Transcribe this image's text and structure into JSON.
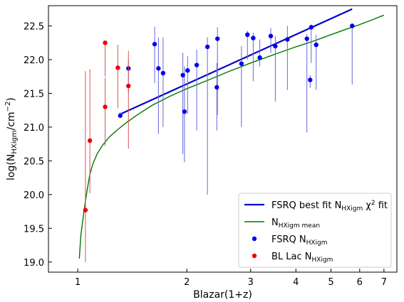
{
  "chart_data": {
    "type": "scatter",
    "title": "",
    "xlabel": "Blazar(1+z)",
    "ylabel_main": "log(N",
    "ylabel_sub": "HXigm",
    "ylabel_unit": "/cm",
    "ylabel_sup": "−2",
    "ylabel_close": ")",
    "xscale": "log",
    "xlim": [
      0.83,
      7.6
    ],
    "ylim": [
      18.85,
      22.8
    ],
    "xticks": [
      {
        "v": 1,
        "label": "1"
      },
      {
        "v": 2,
        "label": "2"
      },
      {
        "v": 3,
        "label": "3"
      },
      {
        "v": 4,
        "label": "4"
      },
      {
        "v": 5,
        "label": "5"
      },
      {
        "v": 6,
        "label": "6"
      },
      {
        "v": 7,
        "label": "7"
      }
    ],
    "yticks": [
      {
        "v": 19.0,
        "label": "19.0"
      },
      {
        "v": 19.5,
        "label": "19.5"
      },
      {
        "v": 20.0,
        "label": "20.0"
      },
      {
        "v": 20.5,
        "label": "20.5"
      },
      {
        "v": 21.0,
        "label": "21.0"
      },
      {
        "v": 21.5,
        "label": "21.5"
      },
      {
        "v": 22.0,
        "label": "22.0"
      },
      {
        "v": 22.5,
        "label": "22.5"
      }
    ],
    "legend": {
      "placement": "lower-right",
      "entries": [
        {
          "main": "FSRQ best fit N",
          "sub": "HXigm",
          "tail": " χ",
          "sup": "2",
          "tail2": " fit",
          "kind": "line",
          "color": "#0000cc"
        },
        {
          "main": "N",
          "sub": "HXigm mean",
          "tail": "",
          "sup": "",
          "tail2": "",
          "kind": "line",
          "color": "#007700"
        },
        {
          "main": "FSRQ N",
          "sub": "HXigm",
          "tail": "",
          "sup": "",
          "tail2": "",
          "kind": "dot",
          "color": "#0000ee"
        },
        {
          "main": "BL Lac N",
          "sub": "HXigm",
          "tail": "",
          "sup": "",
          "tail2": "",
          "kind": "dot",
          "color": "#ee0000"
        }
      ]
    },
    "series": [
      {
        "kind": "fit_line",
        "color": "#0000cc",
        "x": [
          1.32,
          5.72
        ],
        "y": [
          21.2,
          22.75
        ]
      },
      {
        "kind": "mean_curve",
        "color": "#007700",
        "x": [
          1.01,
          1.02,
          1.04,
          1.06,
          1.08,
          1.1,
          1.13,
          1.17,
          1.22,
          1.28,
          1.35,
          1.45,
          1.6,
          1.8,
          2.0,
          2.3,
          2.6,
          3.0,
          3.5,
          4.0,
          4.5,
          5.0,
          5.5,
          6.0,
          6.5,
          7.0
        ],
        "y": [
          19.05,
          19.4,
          19.75,
          20.05,
          20.3,
          20.45,
          20.6,
          20.73,
          20.85,
          20.95,
          21.05,
          21.17,
          21.32,
          21.46,
          21.57,
          21.7,
          21.82,
          21.95,
          22.08,
          22.19,
          22.28,
          22.37,
          22.45,
          22.52,
          22.59,
          22.66
        ]
      },
      {
        "kind": "points",
        "color": "#0000ee",
        "errcolor": "#6666dd",
        "points": [
          {
            "x": 1.31,
            "y": 21.17,
            "lo": 21.14,
            "hi": 21.22
          },
          {
            "x": 1.38,
            "y": 21.87,
            "lo": 21.5,
            "hi": 22.0
          },
          {
            "x": 1.63,
            "y": 22.23,
            "lo": 21.65,
            "hi": 22.49
          },
          {
            "x": 1.67,
            "y": 21.87,
            "lo": 20.9,
            "hi": 22.33
          },
          {
            "x": 1.72,
            "y": 21.8,
            "lo": 21.0,
            "hi": 22.33
          },
          {
            "x": 1.95,
            "y": 21.77,
            "lo": 20.6,
            "hi": 22.1
          },
          {
            "x": 1.97,
            "y": 21.23,
            "lo": 20.48,
            "hi": 21.9
          },
          {
            "x": 2.01,
            "y": 21.84,
            "lo": 21.2,
            "hi": 22.05
          },
          {
            "x": 2.13,
            "y": 21.92,
            "lo": 20.95,
            "hi": 22.15
          },
          {
            "x": 2.28,
            "y": 22.19,
            "lo": 20.0,
            "hi": 22.33
          },
          {
            "x": 2.42,
            "y": 21.59,
            "lo": 20.95,
            "hi": 21.95
          },
          {
            "x": 2.43,
            "y": 22.31,
            "lo": 21.18,
            "hi": 22.48
          },
          {
            "x": 2.83,
            "y": 21.94,
            "lo": 21.0,
            "hi": 22.2
          },
          {
            "x": 2.94,
            "y": 22.37,
            "lo": 22.0,
            "hi": 22.43
          },
          {
            "x": 3.05,
            "y": 22.32,
            "lo": 21.68,
            "hi": 22.4
          },
          {
            "x": 3.18,
            "y": 22.03,
            "lo": 21.9,
            "hi": 22.3
          },
          {
            "x": 3.41,
            "y": 22.35,
            "lo": 22.1,
            "hi": 22.47
          },
          {
            "x": 3.51,
            "y": 22.2,
            "lo": 21.38,
            "hi": 22.35
          },
          {
            "x": 3.79,
            "y": 22.3,
            "lo": 21.55,
            "hi": 22.5
          },
          {
            "x": 4.29,
            "y": 22.31,
            "lo": 20.92,
            "hi": 22.38
          },
          {
            "x": 4.38,
            "y": 21.7,
            "lo": 21.58,
            "hi": 21.77
          },
          {
            "x": 4.41,
            "y": 22.48,
            "lo": 21.95,
            "hi": 22.52
          },
          {
            "x": 4.55,
            "y": 22.22,
            "lo": 21.55,
            "hi": 22.37
          },
          {
            "x": 5.72,
            "y": 22.5,
            "lo": 21.63,
            "hi": 22.54
          }
        ]
      },
      {
        "kind": "points",
        "color": "#ee0000",
        "errcolor": "#e05050",
        "points": [
          {
            "x": 1.05,
            "y": 19.77,
            "lo": 19.0,
            "hi": 21.83
          },
          {
            "x": 1.08,
            "y": 20.8,
            "lo": 20.02,
            "hi": 21.86
          },
          {
            "x": 1.19,
            "y": 21.3,
            "lo": 20.72,
            "hi": 21.73
          },
          {
            "x": 1.19,
            "y": 22.25,
            "lo": 21.75,
            "hi": 22.27
          },
          {
            "x": 1.29,
            "y": 21.88,
            "lo": 21.28,
            "hi": 22.22
          },
          {
            "x": 1.38,
            "y": 21.61,
            "lo": 20.68,
            "hi": 22.13
          }
        ]
      }
    ]
  }
}
